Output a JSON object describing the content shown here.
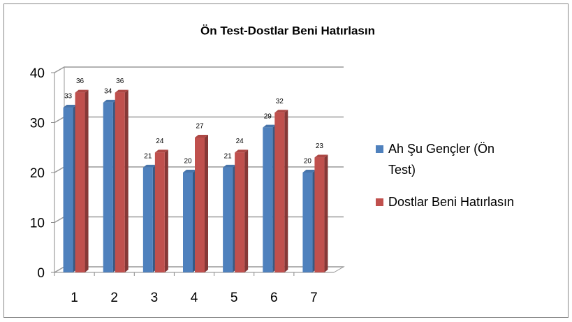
{
  "chart_data": {
    "type": "bar",
    "title": "Ön Test-Dostlar Beni Hatırlasın",
    "categories": [
      "1",
      "2",
      "3",
      "4",
      "5",
      "6",
      "7"
    ],
    "series": [
      {
        "name": "Ah Şu Gençler (Ön Test)",
        "color": "#4f81bd",
        "values": [
          33,
          34,
          21,
          20,
          21,
          29,
          20
        ]
      },
      {
        "name": "Dostlar Beni Hatırlasın",
        "color": "#c0504d",
        "values": [
          36,
          36,
          24,
          27,
          24,
          32,
          23
        ]
      }
    ],
    "ylim": [
      0,
      40
    ],
    "yticks": [
      0,
      10,
      20,
      30,
      40
    ],
    "grid": true,
    "legend": "right"
  }
}
